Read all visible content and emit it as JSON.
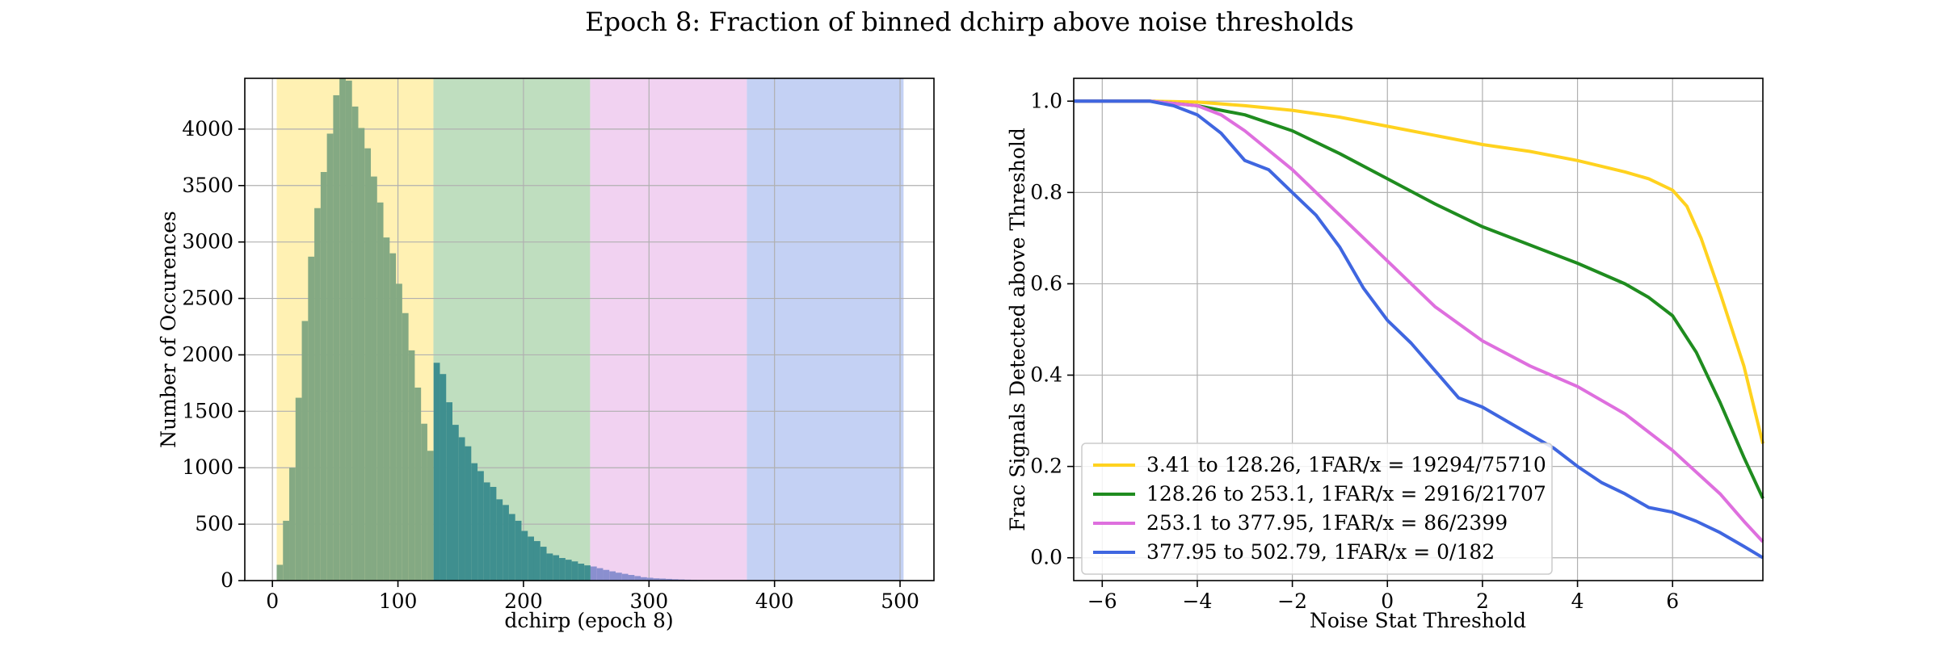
{
  "figure": {
    "title": "Epoch 8: Fraction of binned dchirp above noise thresholds"
  },
  "chart_data": [
    {
      "type": "bar",
      "subtype": "histogram",
      "xlabel": "dchirp (epoch 8)",
      "ylabel": "Number of Occurences",
      "xlim": [
        -22,
        527
      ],
      "ylim": [
        0,
        4450
      ],
      "xticks": [
        0,
        100,
        200,
        300,
        400,
        500
      ],
      "yticks": [
        0,
        500,
        1000,
        1500,
        2000,
        2500,
        3000,
        3500,
        4000
      ],
      "grid": true,
      "bands": [
        {
          "from": 3.41,
          "to": 128.26,
          "color": "#fff1b3"
        },
        {
          "from": 128.26,
          "to": 253.1,
          "color": "#bfdebf"
        },
        {
          "from": 253.1,
          "to": 377.95,
          "color": "#f1d2f1"
        },
        {
          "from": 377.95,
          "to": 502.79,
          "color": "#c4d1f4"
        }
      ],
      "bin_start": 3.41,
      "bin_width": 5,
      "counts": [
        140,
        530,
        1000,
        1620,
        2300,
        2870,
        3300,
        3620,
        3960,
        4300,
        4450,
        4430,
        4200,
        4010,
        3830,
        3580,
        3350,
        3040,
        2900,
        2630,
        2370,
        2040,
        1710,
        1390,
        1150,
        1930,
        1830,
        1580,
        1380,
        1270,
        1190,
        1040,
        970,
        870,
        830,
        720,
        670,
        590,
        530,
        440,
        390,
        350,
        300,
        240,
        225,
        200,
        185,
        170,
        150,
        135,
        125,
        110,
        95,
        82,
        70,
        60,
        50,
        40,
        30,
        25,
        20,
        18,
        15,
        12,
        10,
        8,
        6,
        5,
        4,
        3,
        2,
        2,
        1,
        1,
        1,
        1,
        0,
        0,
        0,
        0,
        0,
        0,
        0,
        0,
        0,
        0,
        0,
        0,
        0,
        0,
        0,
        0,
        0,
        0,
        0,
        0,
        0,
        0,
        0,
        0
      ],
      "bar_colors_by_band": [
        "#84a983",
        "#3f8f8f",
        "#8a8fcf",
        "#4f6bd8"
      ]
    },
    {
      "type": "line",
      "xlabel": "Noise Stat Threshold",
      "ylabel": "Frac Signals Detected above Threshold",
      "xlim": [
        -6.6,
        7.9
      ],
      "ylim": [
        -0.05,
        1.05
      ],
      "xticks": [
        -6,
        -4,
        -2,
        0,
        2,
        4,
        6
      ],
      "xtick_labels": [
        "−6",
        "−4",
        "−2",
        "0",
        "2",
        "4",
        "6"
      ],
      "yticks": [
        0.0,
        0.2,
        0.4,
        0.6,
        0.8,
        1.0
      ],
      "ytick_labels": [
        "0.0",
        "0.2",
        "0.4",
        "0.6",
        "0.8",
        "1.0"
      ],
      "grid": true,
      "legend_position": "lower-left",
      "series": [
        {
          "name": "3.41 to 128.26, 1FAR/x = 19294/75710",
          "color": "#ffd21f",
          "x": [
            -6.6,
            -5,
            -4,
            -3,
            -2,
            -1,
            0,
            1,
            2,
            3,
            4,
            5,
            5.5,
            6,
            6.3,
            6.6,
            7,
            7.5,
            7.9
          ],
          "y": [
            1.0,
            1.0,
            0.998,
            0.99,
            0.98,
            0.965,
            0.945,
            0.925,
            0.905,
            0.89,
            0.87,
            0.845,
            0.83,
            0.805,
            0.77,
            0.7,
            0.58,
            0.42,
            0.25
          ]
        },
        {
          "name": "128.26 to 253.1, 1FAR/x = 2916/21707",
          "color": "#1f8c1f",
          "x": [
            -6.6,
            -5,
            -4,
            -3,
            -2,
            -1,
            0,
            1,
            2,
            3,
            4,
            5,
            5.5,
            6,
            6.5,
            7,
            7.5,
            7.9
          ],
          "y": [
            1.0,
            1.0,
            0.99,
            0.97,
            0.935,
            0.885,
            0.83,
            0.775,
            0.725,
            0.685,
            0.645,
            0.6,
            0.57,
            0.53,
            0.45,
            0.34,
            0.22,
            0.13
          ]
        },
        {
          "name": "253.1 to 377.95, 1FAR/x = 86/2399",
          "color": "#de6fde",
          "x": [
            -6.6,
            -5,
            -4,
            -3.5,
            -3,
            -2,
            -1,
            0,
            1,
            2,
            3,
            4,
            5,
            6,
            7,
            7.5,
            7.9
          ],
          "y": [
            1.0,
            1.0,
            0.99,
            0.97,
            0.935,
            0.85,
            0.75,
            0.65,
            0.55,
            0.475,
            0.42,
            0.375,
            0.315,
            0.235,
            0.14,
            0.08,
            0.035
          ]
        },
        {
          "name": "377.95 to 502.79, 1FAR/x = 0/182",
          "color": "#3f66e0",
          "x": [
            -6.6,
            -5,
            -4.5,
            -4,
            -3.5,
            -3,
            -2.5,
            -2,
            -1.5,
            -1,
            -0.5,
            0,
            0.5,
            1,
            1.5,
            2,
            2.5,
            3,
            3.5,
            4,
            4.5,
            5,
            5.5,
            6,
            6.5,
            7,
            7.5,
            7.9
          ],
          "y": [
            1.0,
            1.0,
            0.99,
            0.97,
            0.93,
            0.87,
            0.85,
            0.8,
            0.75,
            0.68,
            0.59,
            0.52,
            0.47,
            0.41,
            0.35,
            0.33,
            0.3,
            0.27,
            0.24,
            0.2,
            0.165,
            0.14,
            0.11,
            0.1,
            0.08,
            0.055,
            0.025,
            0.0
          ]
        }
      ]
    }
  ]
}
